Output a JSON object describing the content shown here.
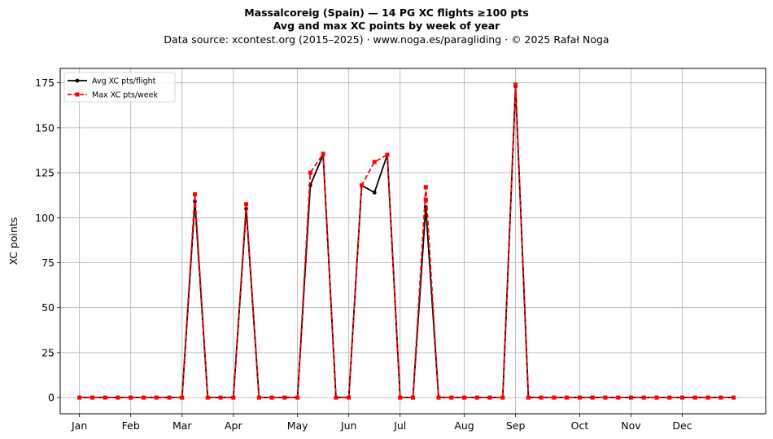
{
  "header": {
    "title_line1": "Massalcoreig (Spain)  —  14 PG XC flights ≥100 pts",
    "title_line2": "Avg and max XC points by week of year",
    "source_line": "Data source: xcontest.org (2015–2025)  ·  www.noga.es/paragliding  ·  © 2025 Rafał Noga"
  },
  "chart_data": {
    "type": "line",
    "title": "Massalcoreig (Spain)  —  14 PG XC flights ≥100 pts",
    "subtitle": "Avg and max XC points by week of year",
    "xlabel": "",
    "ylabel": "XC points",
    "x_unit": "week of year",
    "xlim": [
      -1.5,
      53.5
    ],
    "ylim": [
      -9,
      183
    ],
    "yticks": [
      0,
      25,
      50,
      75,
      100,
      125,
      150,
      175
    ],
    "xticks": [
      {
        "label": "Jan",
        "week": 0
      },
      {
        "label": "Feb",
        "week": 4
      },
      {
        "label": "Mar",
        "week": 8
      },
      {
        "label": "Apr",
        "week": 12
      },
      {
        "label": "May",
        "week": 17
      },
      {
        "label": "Jun",
        "week": 21
      },
      {
        "label": "Jul",
        "week": 25
      },
      {
        "label": "Aug",
        "week": 30
      },
      {
        "label": "Sep",
        "week": 34
      },
      {
        "label": "Oct",
        "week": 39
      },
      {
        "label": "Nov",
        "week": 43
      },
      {
        "label": "Dec",
        "week": 47
      }
    ],
    "grid": true,
    "legend_position": "top-left",
    "x": [
      0,
      1,
      2,
      3,
      4,
      5,
      6,
      7,
      8,
      9,
      10,
      11,
      12,
      13,
      14,
      15,
      16,
      17,
      18,
      19,
      20,
      21,
      22,
      23,
      24,
      25,
      26,
      27,
      28,
      29,
      30,
      31,
      32,
      33,
      34,
      35,
      36,
      37,
      38,
      39,
      40,
      41,
      42,
      43,
      44,
      45,
      46,
      47,
      48,
      49,
      50,
      51
    ],
    "series": [
      {
        "name": "Avg XC pts/flight",
        "color": "#000000",
        "style": "solid",
        "marker": "circle",
        "values": [
          0,
          0,
          0,
          0,
          0,
          0,
          0,
          0,
          0,
          109,
          0,
          0,
          0,
          105,
          0,
          0,
          0,
          0,
          118,
          135,
          0,
          0,
          118,
          114,
          135,
          0,
          0,
          106,
          0,
          0,
          0,
          0,
          0,
          0,
          173,
          0,
          0,
          0,
          0,
          0,
          0,
          0,
          0,
          0,
          0,
          0,
          0,
          0,
          0,
          0,
          0,
          0
        ]
      },
      {
        "name": "Max XC pts/week",
        "color": "#ff0000",
        "style": "dashed",
        "marker": "square",
        "values": [
          0,
          0,
          0,
          0,
          0,
          0,
          0,
          0,
          0,
          113,
          0,
          0,
          0,
          107.5,
          0,
          0,
          0,
          0,
          125,
          135.5,
          0,
          0,
          118,
          131,
          135,
          0,
          0,
          117,
          0,
          0,
          0,
          0,
          0,
          0,
          174,
          0,
          0,
          0,
          0,
          0,
          0,
          0,
          0,
          0,
          0,
          0,
          0,
          0,
          0,
          0,
          0,
          0
        ]
      }
    ],
    "extra_points": [
      {
        "series": "Max XC pts/week",
        "x": 27,
        "y": 110
      }
    ]
  }
}
